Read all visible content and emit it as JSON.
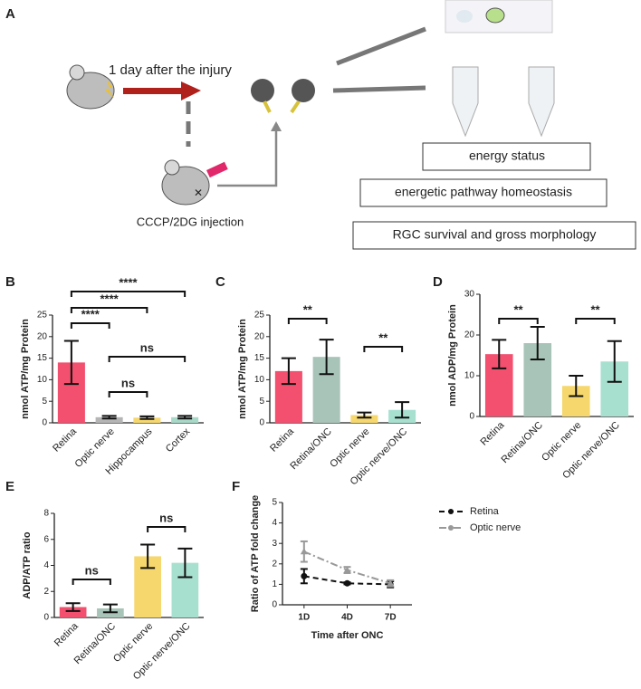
{
  "figure_label": "A",
  "schematic": {
    "arrow_label": "1 day after the injury",
    "injection_label": "CCCP/2DG injection",
    "outcomes": [
      "energy status",
      "energetic pathway homeostasis",
      "RGC survival and gross morphology"
    ]
  },
  "chart_data": [
    {
      "panel": "B",
      "type": "bar",
      "y_label": "nmol ATP/mg Protein",
      "categories": [
        "Retina",
        "Optic nerve",
        "Hippocampus",
        "Cortex"
      ],
      "values": [
        14,
        1.3,
        1.2,
        1.3
      ],
      "errors": [
        5,
        0.3,
        0.3,
        0.3
      ],
      "colors": [
        "#f2506e",
        "#b5b5b5",
        "#f5d76e",
        "#a8d8c8"
      ],
      "ylim": [
        0,
        25
      ],
      "yticks": [
        0,
        5,
        10,
        15,
        20,
        25
      ],
      "annotations": [
        "****",
        "****",
        "****",
        "ns",
        "ns"
      ]
    },
    {
      "panel": "C",
      "type": "bar",
      "y_label": "nmol ATP/mg Protein",
      "categories": [
        "Retina",
        "Retina/ONC",
        "Optic nerve",
        "Optic nerve/ONC"
      ],
      "values": [
        12,
        15.3,
        1.8,
        3
      ],
      "errors": [
        3,
        4,
        0.6,
        1.8
      ],
      "colors": [
        "#f2506e",
        "#a8c4b8",
        "#f5d76e",
        "#a8e0d0"
      ],
      "ylim": [
        0,
        25
      ],
      "yticks": [
        0,
        5,
        10,
        15,
        20,
        25
      ],
      "annotations": [
        "**",
        "**"
      ]
    },
    {
      "panel": "D",
      "type": "bar",
      "y_label": "nmol ADP/mg Protein",
      "categories": [
        "Retina",
        "Retina/ONC",
        "Optic nerve",
        "Optic nerve/ONC"
      ],
      "values": [
        15.3,
        18,
        7.5,
        13.5
      ],
      "errors": [
        3.5,
        4,
        2.5,
        5
      ],
      "colors": [
        "#f2506e",
        "#a8c4b8",
        "#f5d76e",
        "#a8e0d0"
      ],
      "ylim": [
        0,
        30
      ],
      "yticks": [
        0,
        10,
        20,
        30
      ],
      "annotations": [
        "**",
        "**"
      ]
    },
    {
      "panel": "E",
      "type": "bar",
      "y_label": "ADP/ATP ratio",
      "categories": [
        "Retina",
        "Retina/ONC",
        "Optic nerve",
        "Optic nerve/ONC"
      ],
      "values": [
        0.8,
        0.7,
        4.7,
        4.2
      ],
      "errors": [
        0.3,
        0.3,
        0.9,
        1.1
      ],
      "colors": [
        "#f2506e",
        "#a8c4b8",
        "#f5d76e",
        "#a8e0d0"
      ],
      "ylim": [
        0,
        8
      ],
      "yticks": [
        0,
        2,
        4,
        6,
        8
      ],
      "annotations": [
        "ns",
        "ns"
      ]
    },
    {
      "panel": "F",
      "type": "line",
      "y_label": "Ratio of ATP fold change",
      "x_label": "Time after ONC",
      "categories": [
        "1D",
        "4D",
        "7D"
      ],
      "series": [
        {
          "name": "Retina",
          "color": "#111111",
          "values": [
            1.4,
            1.05,
            1.0
          ],
          "errors": [
            0.35,
            0.05,
            0.15
          ]
        },
        {
          "name": "Optic nerve",
          "color": "#999999",
          "values": [
            2.6,
            1.7,
            1.05
          ],
          "errors": [
            0.5,
            0.15,
            0.15
          ]
        }
      ],
      "ylim": [
        0,
        5
      ],
      "yticks": [
        0,
        1,
        2,
        3,
        4,
        5
      ],
      "legend": "upper right"
    }
  ]
}
